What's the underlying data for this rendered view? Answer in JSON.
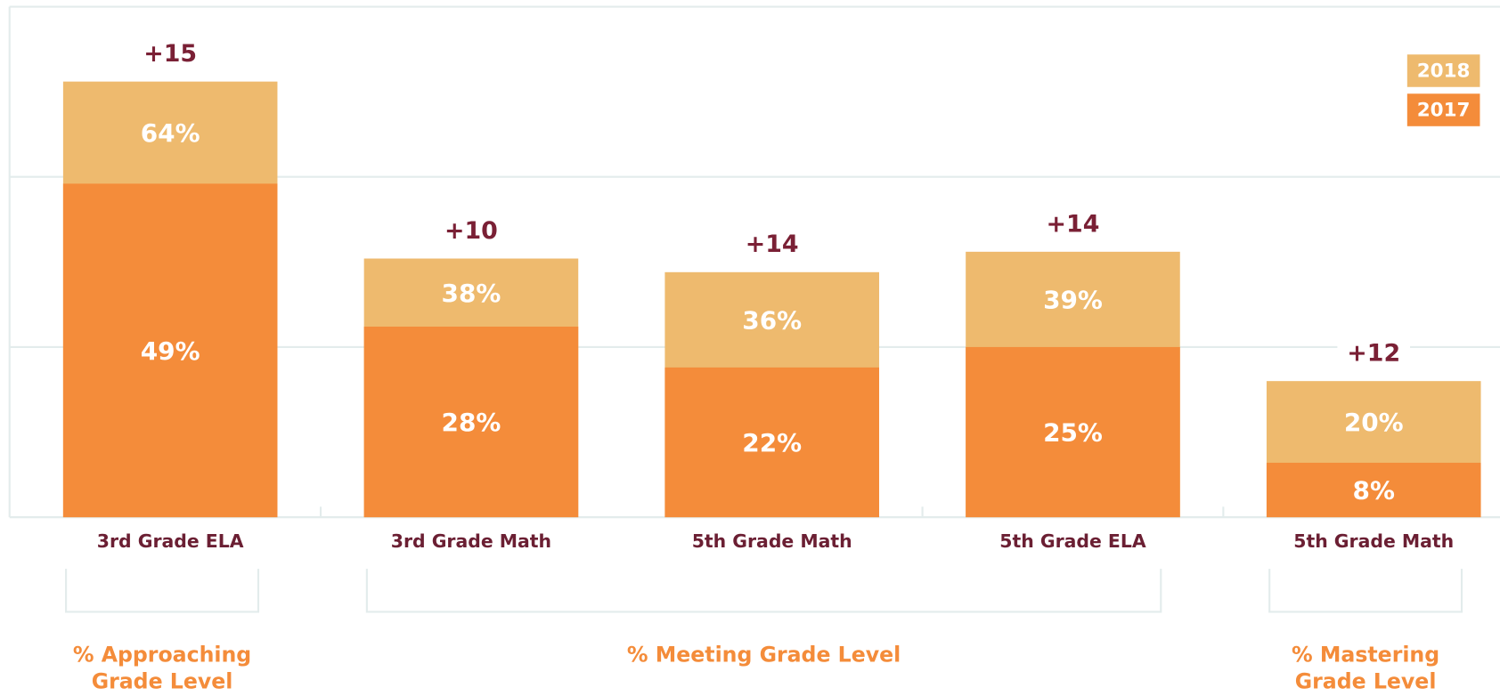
{
  "chart_data": {
    "type": "bar",
    "categories": [
      "3rd Grade ELA",
      "3rd Grade Math",
      "5th Grade Math",
      "5th Grade ELA",
      "5th Grade Math"
    ],
    "series": [
      {
        "name": "2018",
        "color": "#eeba6e",
        "values": [
          64,
          38,
          36,
          39,
          20
        ],
        "value_labels": [
          "64%",
          "38%",
          "36%",
          "39%",
          "20%"
        ]
      },
      {
        "name": "2017",
        "color": "#f48c3a",
        "values": [
          49,
          28,
          22,
          25,
          8
        ],
        "value_labels": [
          "49%",
          "28%",
          "22%",
          "25%",
          "8%"
        ]
      }
    ],
    "annotations": [
      "+15",
      "+10",
      "+14",
      "+14",
      "+12"
    ],
    "groups": [
      {
        "label": [
          "% Approaching",
          "Grade Level"
        ]
      },
      {
        "label": [
          "% Meeting Grade Level"
        ]
      },
      {
        "label": [
          "% Mastering",
          "Grade Level"
        ]
      }
    ],
    "ylim": [
      0,
      75
    ],
    "yticks": [
      0,
      25,
      50,
      75
    ],
    "grid": true,
    "legend": "top-right"
  }
}
